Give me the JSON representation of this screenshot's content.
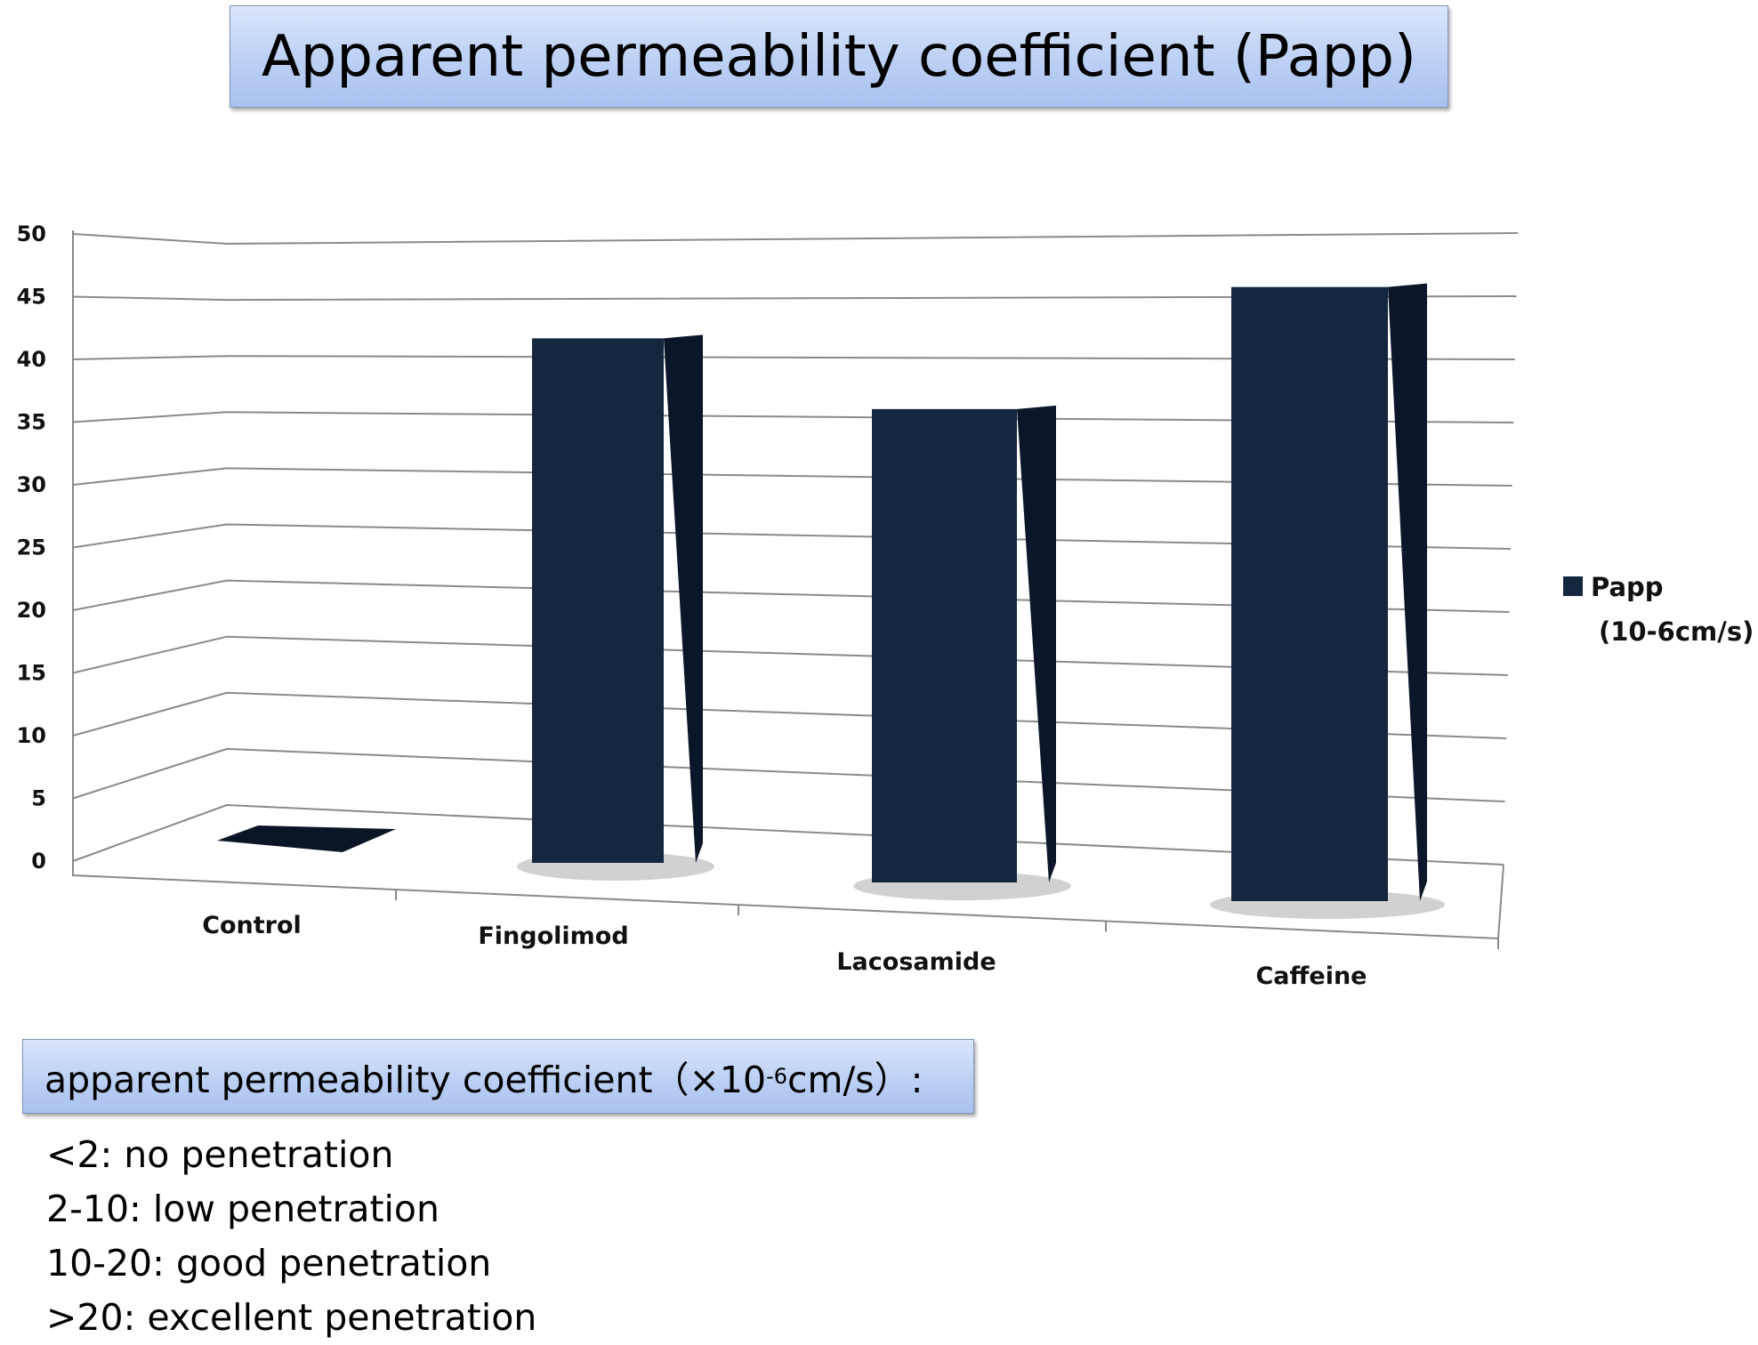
{
  "title": "Apparent permeability coefficient (Papp)",
  "chart_data": {
    "type": "bar",
    "categories": [
      "Control",
      "Fingolimod",
      "Lacosamide",
      "Caffeine"
    ],
    "series": [
      {
        "name": "Papp (10-6cm/s)",
        "values": [
          0,
          41,
          37,
          48
        ],
        "color": "#15263f"
      }
    ],
    "yticks": [
      0,
      5,
      10,
      15,
      20,
      25,
      30,
      35,
      40,
      45,
      50
    ],
    "ylim": [
      0,
      50
    ],
    "grid": true,
    "legend": "right"
  },
  "legend": {
    "line1": "Papp",
    "line2": "(10-6cm/s)"
  },
  "scale": {
    "heading_pre": "apparent permeability coefficient（×10",
    "heading_exp": "-6",
    "heading_post": "cm/s）:",
    "items": [
      "<2: no penetration",
      "2-10: low penetration",
      "10-20: good penetration",
      ">20: excellent penetration"
    ]
  }
}
